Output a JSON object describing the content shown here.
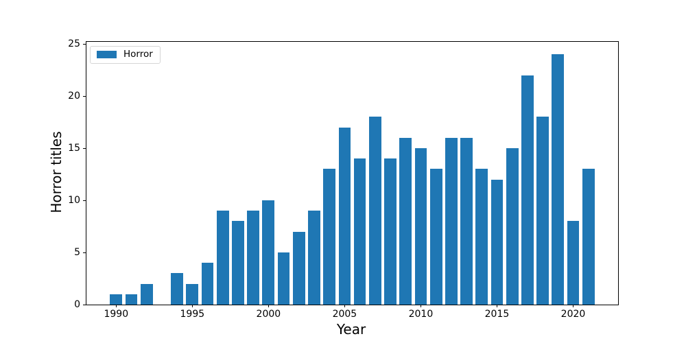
{
  "chart_data": {
    "type": "bar",
    "title": "",
    "xlabel": "Year",
    "ylabel": "Horror titles",
    "series": [
      {
        "name": "Horror",
        "color": "#1f77b4",
        "x": [
          1990,
          1991,
          1992,
          1993,
          1994,
          1995,
          1996,
          1997,
          1998,
          1999,
          2000,
          2001,
          2002,
          2003,
          2004,
          2005,
          2006,
          2007,
          2008,
          2009,
          2010,
          2011,
          2012,
          2013,
          2014,
          2015,
          2016,
          2017,
          2018,
          2019,
          2020,
          2021
        ],
        "values": [
          1,
          1,
          2,
          0,
          3,
          2,
          4,
          9,
          8,
          9,
          10,
          5,
          7,
          9,
          13,
          17,
          14,
          18,
          14,
          16,
          15,
          13,
          16,
          16,
          13,
          12,
          15,
          22,
          18,
          24,
          8,
          13
        ]
      }
    ],
    "bar_width": 0.8,
    "xlim": [
      1988.05,
      2022.95
    ],
    "ylim": [
      0,
      25.2
    ],
    "xticks": [
      1990,
      1995,
      2000,
      2005,
      2010,
      2015,
      2020
    ],
    "yticks": [
      0,
      5,
      10,
      15,
      20,
      25
    ],
    "grid": false,
    "legend": {
      "position": "upper-left",
      "entries": [
        {
          "label": "Horror",
          "color": "#1f77b4"
        }
      ]
    }
  }
}
